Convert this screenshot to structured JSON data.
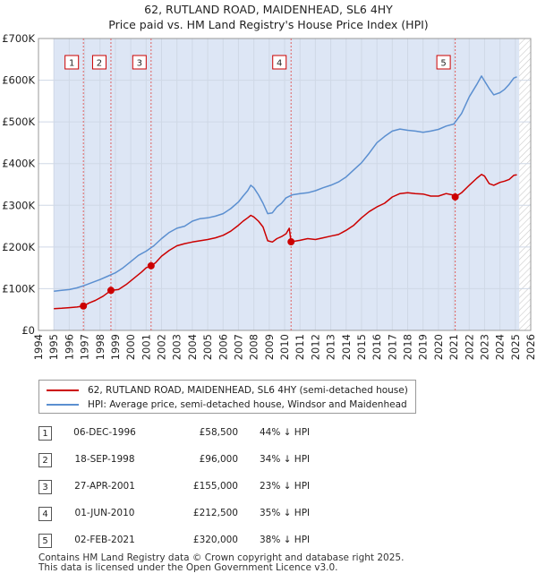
{
  "header": {
    "title_line1": "62, RUTLAND ROAD, MAIDENHEAD, SL6 4HY",
    "title_line2": "Price paid vs. HM Land Registry's House Price Index (HPI)"
  },
  "colors": {
    "property": "#cc0000",
    "hpi": "#5b8fd0",
    "shade": "#dde6f5",
    "grid": "#cfd8e6"
  },
  "chart_data": {
    "type": "line",
    "title": "62, RUTLAND ROAD, MAIDENHEAD, SL6 4HY — Price paid vs. HM Land Registry's House Price Index (HPI)",
    "xlabel": "",
    "ylabel": "",
    "xlim": [
      1994,
      2026
    ],
    "ylim": [
      0,
      700000
    ],
    "y_ticks": [
      0,
      100000,
      200000,
      300000,
      400000,
      500000,
      600000,
      700000
    ],
    "y_tick_labels": [
      "£0",
      "£100K",
      "£200K",
      "£300K",
      "£400K",
      "£500K",
      "£600K",
      "£700K"
    ],
    "x_ticks": [
      1994,
      1995,
      1996,
      1997,
      1998,
      1999,
      2000,
      2001,
      2002,
      2003,
      2004,
      2005,
      2006,
      2007,
      2008,
      2009,
      2010,
      2011,
      2012,
      2013,
      2014,
      2015,
      2016,
      2017,
      2018,
      2019,
      2020,
      2021,
      2022,
      2023,
      2024,
      2025,
      2026
    ],
    "x_tick_labels": [
      "1994",
      "1995",
      "1996",
      "1997",
      "1998",
      "1999",
      "2000",
      "2001",
      "2002",
      "2003",
      "2004",
      "2005",
      "2006",
      "2007",
      "2008",
      "2009",
      "2010",
      "2011",
      "2012",
      "2013",
      "2014",
      "2015",
      "2016",
      "2017",
      "2018",
      "2019",
      "2020",
      "2021",
      "2022",
      "2023",
      "2024",
      "2025",
      "2026"
    ],
    "data_range": [
      1995.0,
      2025.25
    ],
    "series": [
      {
        "name": "62, RUTLAND ROAD, MAIDENHEAD, SL6 4HY (semi-detached house)",
        "color": "#cc0000",
        "x": [
          1995.0,
          1995.5,
          1996.0,
          1996.5,
          1996.92,
          1997.3,
          1997.7,
          1998.2,
          1998.71,
          1999.2,
          1999.7,
          2000.2,
          2000.7,
          2001.0,
          2001.32,
          2001.6,
          2002.0,
          2002.5,
          2003.0,
          2003.5,
          2004.0,
          2004.5,
          2005.0,
          2005.5,
          2006.0,
          2006.5,
          2007.0,
          2007.3,
          2007.6,
          2007.8,
          2008.0,
          2008.3,
          2008.6,
          2008.9,
          2009.2,
          2009.5,
          2009.8,
          2010.1,
          2010.3,
          2010.42,
          2010.7,
          2011.0,
          2011.5,
          2012.0,
          2012.5,
          2013.0,
          2013.5,
          2014.0,
          2014.5,
          2015.0,
          2015.5,
          2016.0,
          2016.5,
          2017.0,
          2017.5,
          2018.0,
          2018.5,
          2019.0,
          2019.5,
          2020.0,
          2020.5,
          2020.9,
          2021.09,
          2021.5,
          2022.0,
          2022.5,
          2022.8,
          2023.0,
          2023.3,
          2023.6,
          2024.0,
          2024.3,
          2024.6,
          2024.9,
          2025.1
        ],
        "values": [
          52000,
          53000,
          54500,
          56000,
          58500,
          66000,
          72000,
          82000,
          96000,
          98000,
          110000,
          125000,
          140000,
          150000,
          155000,
          162000,
          178000,
          192000,
          203000,
          208000,
          212000,
          215000,
          218000,
          222000,
          228000,
          238000,
          252000,
          262000,
          270000,
          276000,
          272000,
          262000,
          248000,
          215000,
          212000,
          220000,
          225000,
          232000,
          245000,
          212500,
          214000,
          216000,
          220000,
          218000,
          222000,
          226000,
          230000,
          240000,
          252000,
          270000,
          285000,
          296000,
          305000,
          320000,
          328000,
          330000,
          328000,
          327000,
          322000,
          322000,
          328000,
          325000,
          320000,
          330000,
          348000,
          365000,
          374000,
          370000,
          352000,
          348000,
          355000,
          358000,
          362000,
          372000,
          373000
        ]
      },
      {
        "name": "HPI: Average price, semi-detached house, Windsor and Maidenhead",
        "color": "#5b8fd0",
        "x": [
          1995.0,
          1995.5,
          1996.0,
          1996.5,
          1997.0,
          1997.5,
          1998.0,
          1998.5,
          1999.0,
          1999.5,
          2000.0,
          2000.5,
          2001.0,
          2001.5,
          2002.0,
          2002.5,
          2003.0,
          2003.5,
          2004.0,
          2004.5,
          2005.0,
          2005.5,
          2006.0,
          2006.5,
          2007.0,
          2007.3,
          2007.6,
          2007.8,
          2008.0,
          2008.3,
          2008.6,
          2008.9,
          2009.2,
          2009.5,
          2009.8,
          2010.1,
          2010.5,
          2011.0,
          2011.5,
          2012.0,
          2012.5,
          2013.0,
          2013.5,
          2014.0,
          2014.5,
          2015.0,
          2015.5,
          2016.0,
          2016.5,
          2017.0,
          2017.5,
          2018.0,
          2018.5,
          2019.0,
          2019.5,
          2020.0,
          2020.5,
          2021.0,
          2021.5,
          2022.0,
          2022.5,
          2022.8,
          2023.0,
          2023.3,
          2023.6,
          2024.0,
          2024.3,
          2024.6,
          2024.9,
          2025.1
        ],
        "values": [
          94000,
          96000,
          98000,
          102000,
          108000,
          115000,
          122000,
          130000,
          138000,
          150000,
          165000,
          180000,
          190000,
          203000,
          220000,
          235000,
          245000,
          250000,
          262000,
          268000,
          270000,
          274000,
          280000,
          292000,
          308000,
          322000,
          335000,
          348000,
          342000,
          325000,
          305000,
          280000,
          282000,
          296000,
          305000,
          318000,
          325000,
          328000,
          330000,
          335000,
          342000,
          348000,
          356000,
          368000,
          385000,
          402000,
          425000,
          450000,
          465000,
          478000,
          483000,
          480000,
          478000,
          475000,
          478000,
          482000,
          490000,
          495000,
          520000,
          560000,
          590000,
          610000,
          598000,
          580000,
          565000,
          570000,
          578000,
          590000,
          605000,
          608000
        ]
      }
    ],
    "sales": [
      {
        "label": "1",
        "date": "06-DEC-1996",
        "x": 1996.92,
        "price": 58500,
        "price_text": "£58,500",
        "hpi_text": "44% ↓ HPI"
      },
      {
        "label": "2",
        "date": "18-SEP-1998",
        "x": 1998.71,
        "price": 96000,
        "price_text": "£96,000",
        "hpi_text": "34% ↓ HPI"
      },
      {
        "label": "3",
        "date": "27-APR-2001",
        "x": 2001.32,
        "price": 155000,
        "price_text": "£155,000",
        "hpi_text": "23% ↓ HPI"
      },
      {
        "label": "4",
        "date": "01-JUN-2010",
        "x": 2010.42,
        "price": 212500,
        "price_text": "£212,500",
        "hpi_text": "35% ↓ HPI"
      },
      {
        "label": "5",
        "date": "02-FEB-2021",
        "x": 2021.09,
        "price": 320000,
        "price_text": "£320,000",
        "hpi_text": "38% ↓ HPI"
      }
    ]
  },
  "legend": {
    "property_label": "62, RUTLAND ROAD, MAIDENHEAD, SL6 4HY (semi-detached house)",
    "hpi_label": "HPI: Average price, semi-detached house, Windsor and Maidenhead"
  },
  "footer": {
    "line1": "Contains HM Land Registry data © Crown copyright and database right 2025.",
    "line2": "This data is licensed under the Open Government Licence v3.0."
  }
}
